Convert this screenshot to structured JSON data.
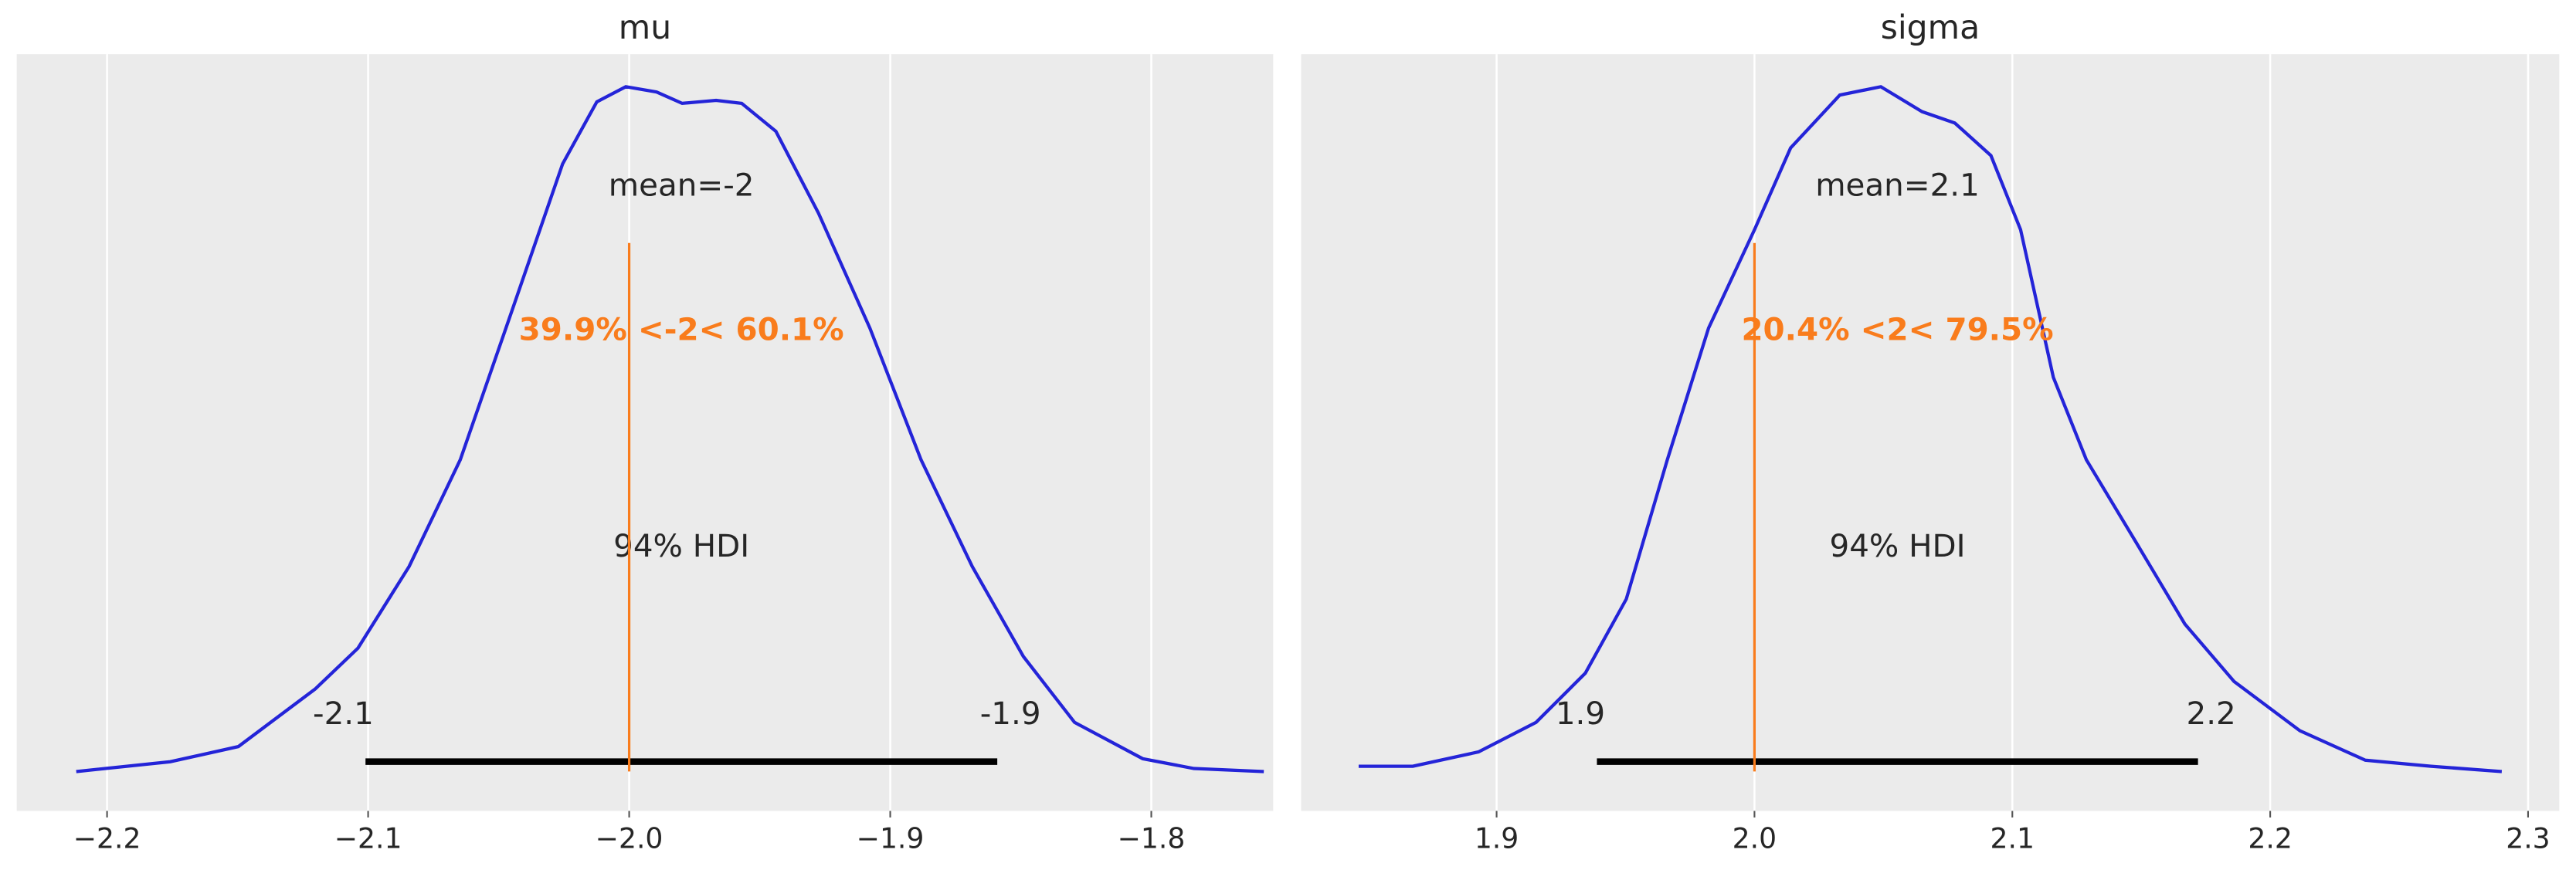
{
  "chart_data": [
    {
      "type": "density",
      "title": "mu",
      "color": "#2424d8",
      "ref_color": "#f97c1c",
      "grid": true,
      "x": [
        -2.2118,
        -2.1758,
        -2.1497,
        -2.1203,
        -2.1039,
        -2.0843,
        -2.0647,
        -2.0451,
        -2.0255,
        -2.0124,
        -2.0013,
        -1.9895,
        -1.9797,
        -1.9667,
        -1.9569,
        -1.9438,
        -1.9275,
        -1.9078,
        -1.8882,
        -1.8686,
        -1.849,
        -1.8294,
        -1.8033,
        -1.7837,
        -1.7569
      ],
      "values": [
        0.052,
        0.065,
        0.085,
        0.161,
        0.215,
        0.323,
        0.464,
        0.659,
        0.855,
        0.937,
        0.957,
        0.95,
        0.935,
        0.939,
        0.935,
        0.898,
        0.79,
        0.638,
        0.464,
        0.323,
        0.204,
        0.117,
        0.069,
        0.056,
        0.052
      ],
      "xlim": [
        -2.2346,
        -1.7533
      ],
      "ylim": [
        0,
        1
      ],
      "xticks": [
        {
          "value": -2.2,
          "label": "−2.2"
        },
        {
          "value": -2.1,
          "label": "−2.1"
        },
        {
          "value": -2.0,
          "label": "−2.0"
        },
        {
          "value": -1.9,
          "label": "−1.9"
        },
        {
          "value": -1.8,
          "label": "−1.8"
        }
      ],
      "hdi": [
        -2.101,
        -1.859
      ],
      "hdi_labels": [
        "-2.1",
        "-1.9"
      ],
      "hdi_text": "94% HDI",
      "mean_text": "mean=-2",
      "ref_val": -2,
      "ref_text": "39.9% <-2< 60.1%"
    },
    {
      "type": "density",
      "title": "sigma",
      "color": "#2424d8",
      "ref_color": "#f97c1c",
      "grid": true,
      "x": [
        1.8465,
        1.8675,
        1.893,
        1.9153,
        1.9344,
        1.9503,
        1.9662,
        1.9822,
        2.0,
        2.014,
        2.0331,
        2.049,
        2.065,
        2.0777,
        2.0917,
        2.1032,
        2.1159,
        2.1287,
        2.1478,
        2.1669,
        2.186,
        2.2115,
        2.2369,
        2.2624,
        2.2898
      ],
      "values": [
        0.059,
        0.059,
        0.078,
        0.117,
        0.182,
        0.28,
        0.464,
        0.638,
        0.768,
        0.876,
        0.946,
        0.957,
        0.924,
        0.909,
        0.866,
        0.768,
        0.573,
        0.464,
        0.356,
        0.247,
        0.171,
        0.106,
        0.067,
        0.059,
        0.052
      ],
      "xlim": [
        1.8242,
        2.3121
      ],
      "ylim": [
        0,
        1
      ],
      "xticks": [
        1.9,
        {
          "value": 2.0,
          "label": "2.0"
        },
        2.1,
        2.2,
        2.3
      ],
      "hdi": [
        1.9389,
        2.172
      ],
      "hdi_labels": [
        "1.9",
        "2.2"
      ],
      "hdi_text": "94% HDI",
      "mean_text": "mean=2.1",
      "ref_val": 2,
      "ref_text": "20.4% <2< 79.5%"
    }
  ]
}
